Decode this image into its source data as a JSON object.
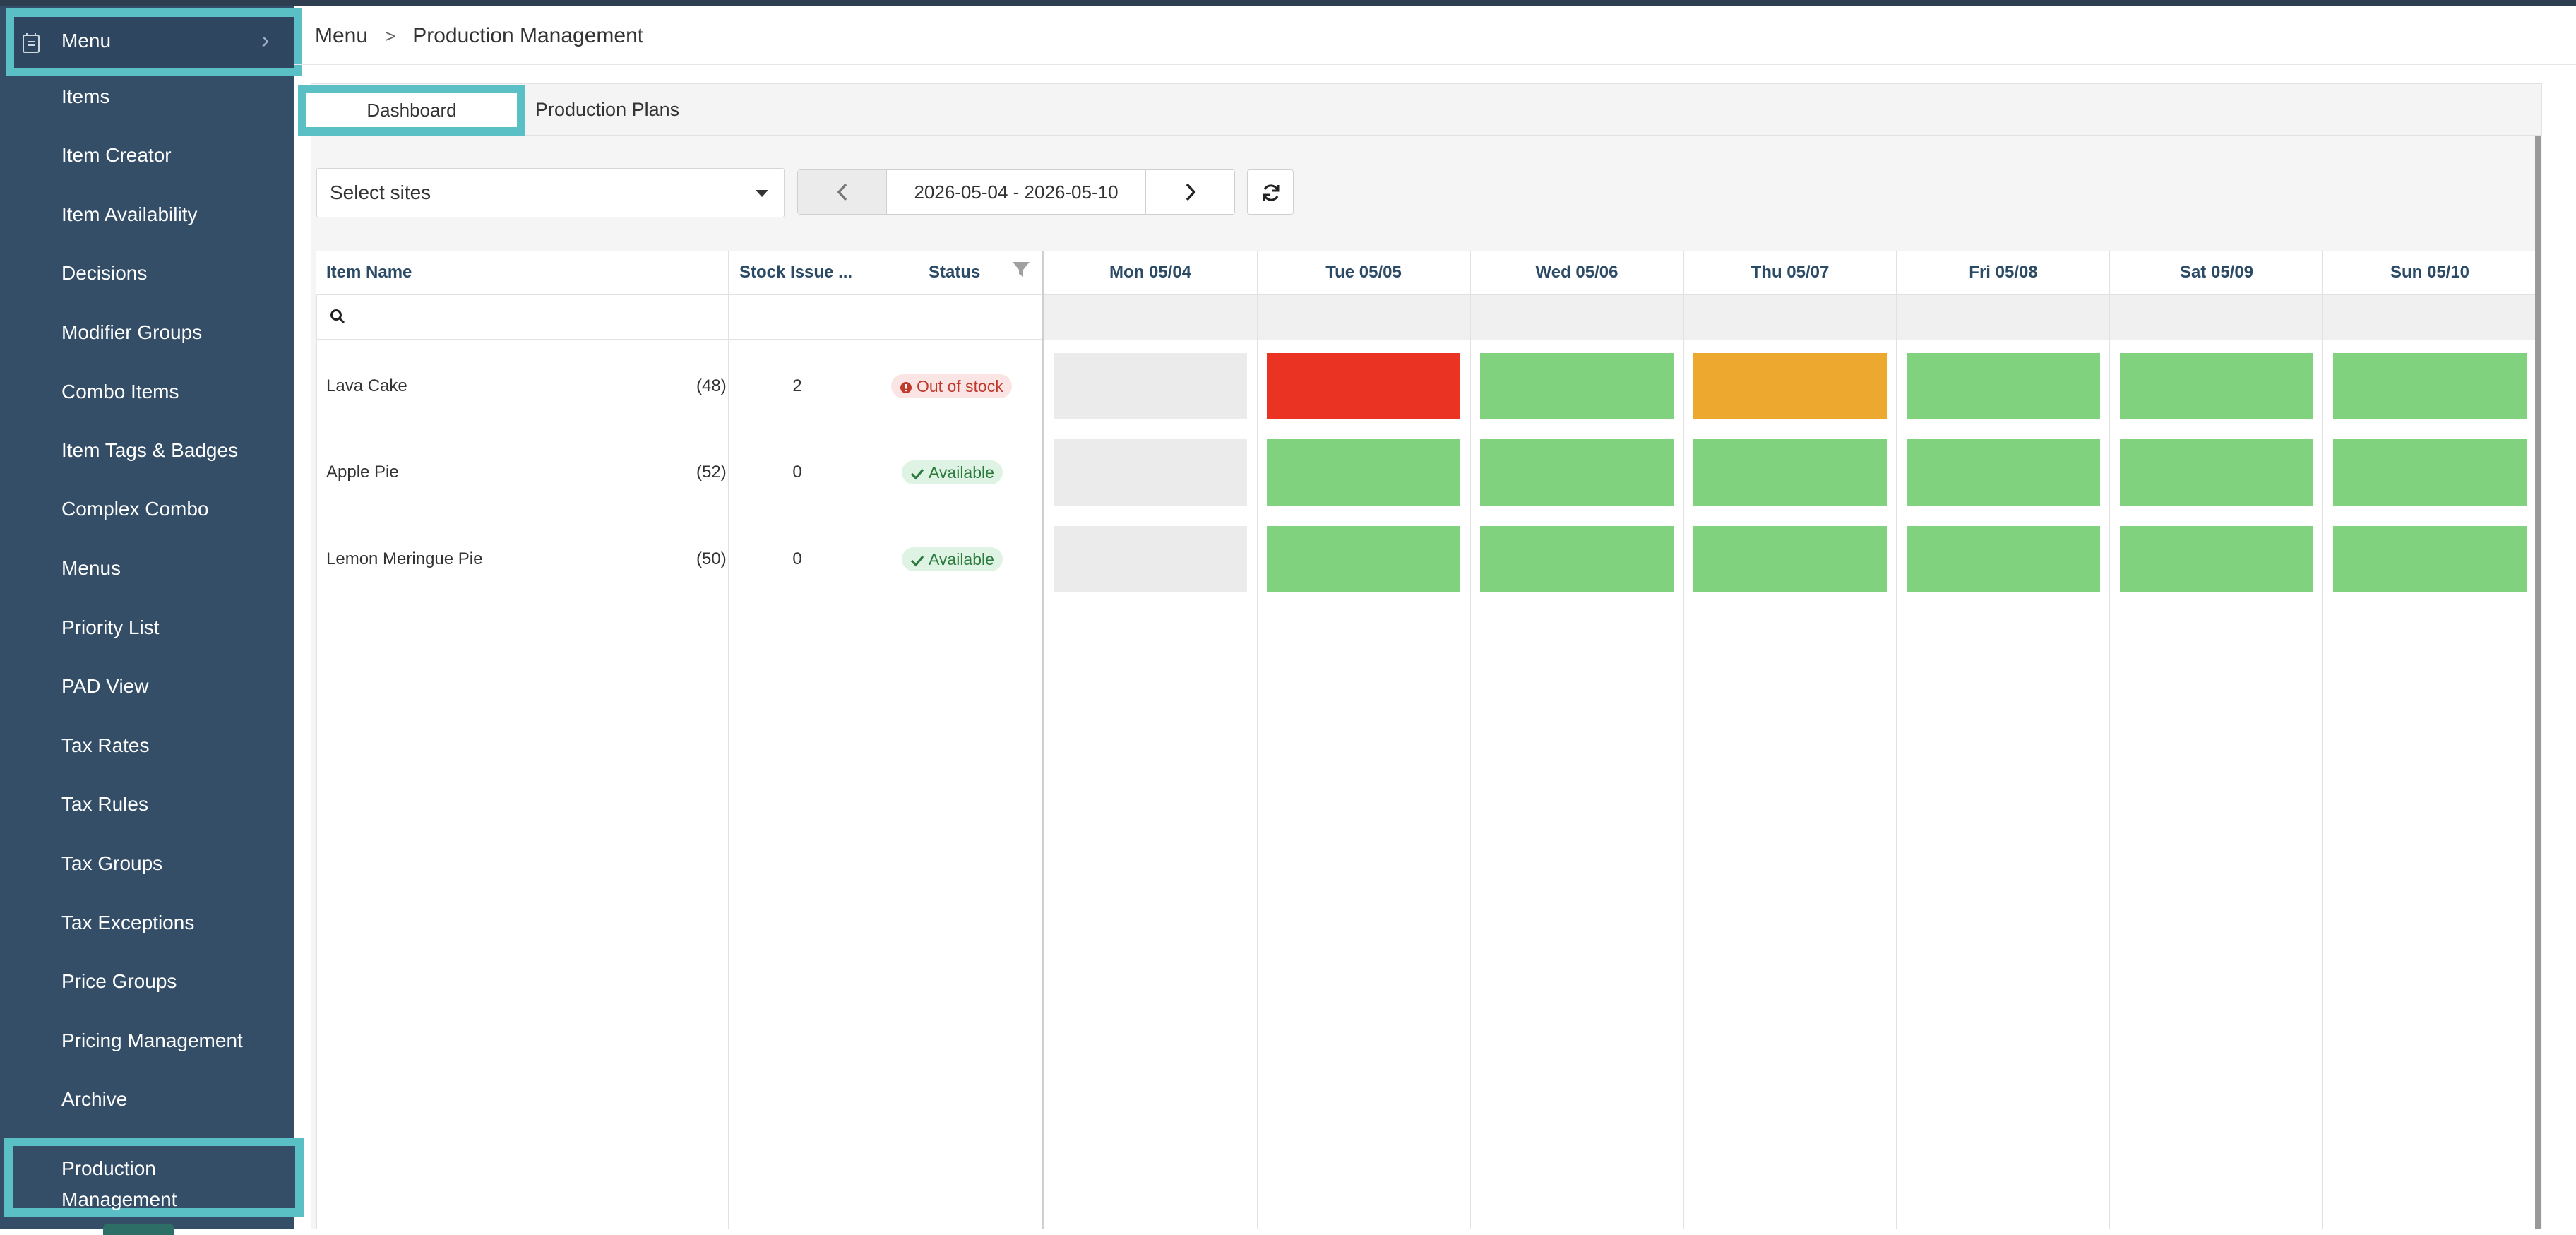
{
  "colors": {
    "sidebar_bg": "#344e68",
    "highlight": "#5bbfc6",
    "cell_available": "#80d27e",
    "cell_out": "#ea3323",
    "cell_low": "#eda830",
    "cell_none": "#ebebeb"
  },
  "sidebar": {
    "header_label": "Menu",
    "items": [
      {
        "label": "Items"
      },
      {
        "label": "Item Creator"
      },
      {
        "label": "Item Availability"
      },
      {
        "label": "Decisions"
      },
      {
        "label": "Modifier Groups"
      },
      {
        "label": "Combo Items"
      },
      {
        "label": "Item Tags & Badges"
      },
      {
        "label": "Complex Combo"
      },
      {
        "label": "Menus"
      },
      {
        "label": "Priority List"
      },
      {
        "label": "PAD View"
      },
      {
        "label": "Tax Rates"
      },
      {
        "label": "Tax Rules"
      },
      {
        "label": "Tax Groups"
      },
      {
        "label": "Tax Exceptions"
      },
      {
        "label": "Price Groups"
      },
      {
        "label": "Pricing Management"
      },
      {
        "label": "Archive"
      }
    ],
    "active_line1": "Production",
    "active_line2": "Management"
  },
  "breadcrumb": {
    "root": "Menu",
    "separator": ">",
    "current": "Production Management"
  },
  "tabs": [
    {
      "label": "Dashboard",
      "active": true
    },
    {
      "label": "Production Plans",
      "active": false
    }
  ],
  "toolbar": {
    "sites_select_value": "Select sites",
    "date_range": "2026-05-04 - 2026-05-10"
  },
  "table": {
    "columns": {
      "item_name": "Item Name",
      "stock_issue": "Stock Issue ...",
      "status": "Status"
    },
    "days": [
      "Mon 05/04",
      "Tue 05/05",
      "Wed 05/06",
      "Thu 05/07",
      "Fri 05/08",
      "Sat 05/09",
      "Sun 05/10"
    ],
    "rows": [
      {
        "name": "Lava Cake",
        "count": "(48)",
        "stock_issue": "2",
        "status": "Out of stock",
        "status_type": "out",
        "days": [
          "none",
          "out",
          "available",
          "low",
          "available",
          "available",
          "available"
        ]
      },
      {
        "name": "Apple Pie",
        "count": "(52)",
        "stock_issue": "0",
        "status": "Available",
        "status_type": "ok",
        "days": [
          "none",
          "available",
          "available",
          "available",
          "available",
          "available",
          "available"
        ]
      },
      {
        "name": "Lemon Meringue Pie",
        "count": "(50)",
        "stock_issue": "0",
        "status": "Available",
        "status_type": "ok",
        "days": [
          "none",
          "available",
          "available",
          "available",
          "available",
          "available",
          "available"
        ]
      }
    ]
  }
}
